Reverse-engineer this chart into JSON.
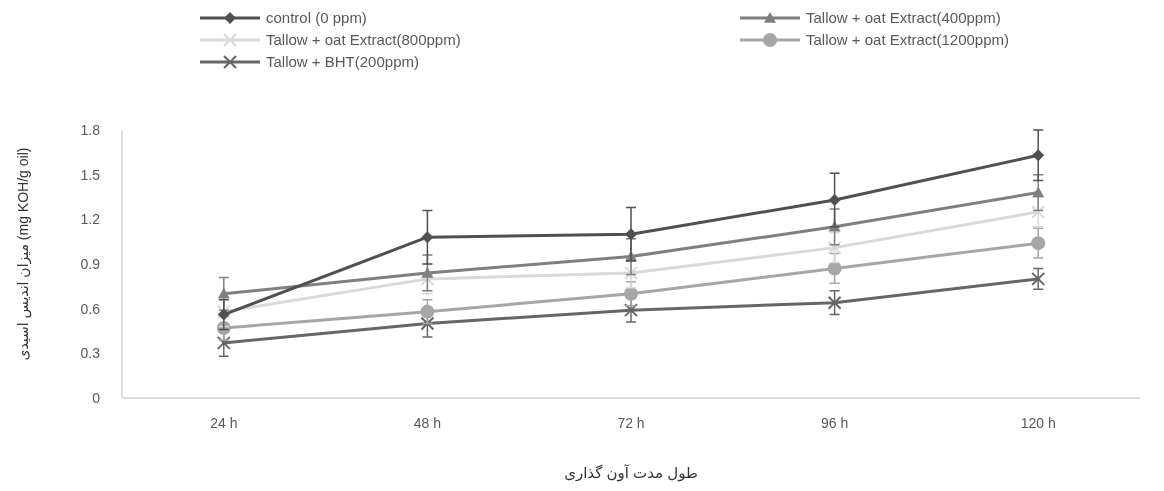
{
  "chart_data": {
    "type": "line",
    "xlabel": "طول مدت آون گذاری",
    "ylabel": "میزان اندیس اسیدی (mg KOH/g oil)",
    "categories": [
      "24 h",
      "48 h",
      "72 h",
      "96 h",
      "120 h"
    ],
    "ylim": [
      0,
      1.8
    ],
    "yticks": [
      0,
      0.3,
      0.6,
      0.9,
      1.2,
      1.5,
      1.8
    ],
    "grid": false,
    "legend": "top",
    "series": [
      {
        "name": "control (0 ppm)",
        "color": "#505050",
        "marker": "diamond",
        "values": [
          0.56,
          1.08,
          1.1,
          1.33,
          1.63
        ],
        "errors": [
          0.1,
          0.18,
          0.18,
          0.18,
          0.17
        ]
      },
      {
        "name": "Tallow + oat Extract(400ppm)",
        "color": "#7f7f7f",
        "marker": "triangle",
        "values": [
          0.7,
          0.84,
          0.95,
          1.15,
          1.38
        ],
        "errors": [
          0.11,
          0.12,
          0.12,
          0.12,
          0.12
        ]
      },
      {
        "name": "Tallow + oat Extract(800ppm)",
        "color": "#d9d9d9",
        "marker": "cross",
        "values": [
          0.58,
          0.8,
          0.84,
          1.01,
          1.25
        ],
        "errors": [
          0.1,
          0.1,
          0.1,
          0.1,
          0.1
        ]
      },
      {
        "name": "Tallow + oat Extract(1200ppm)",
        "color": "#a6a6a6",
        "marker": "circle",
        "values": [
          0.47,
          0.58,
          0.7,
          0.87,
          1.04
        ],
        "errors": [
          0.08,
          0.08,
          0.08,
          0.1,
          0.1
        ]
      },
      {
        "name": "Tallow + BHT(200ppm)",
        "color": "#666666",
        "marker": "cross",
        "values": [
          0.37,
          0.5,
          0.59,
          0.64,
          0.8
        ],
        "errors": [
          0.09,
          0.09,
          0.08,
          0.08,
          0.07
        ]
      }
    ]
  }
}
